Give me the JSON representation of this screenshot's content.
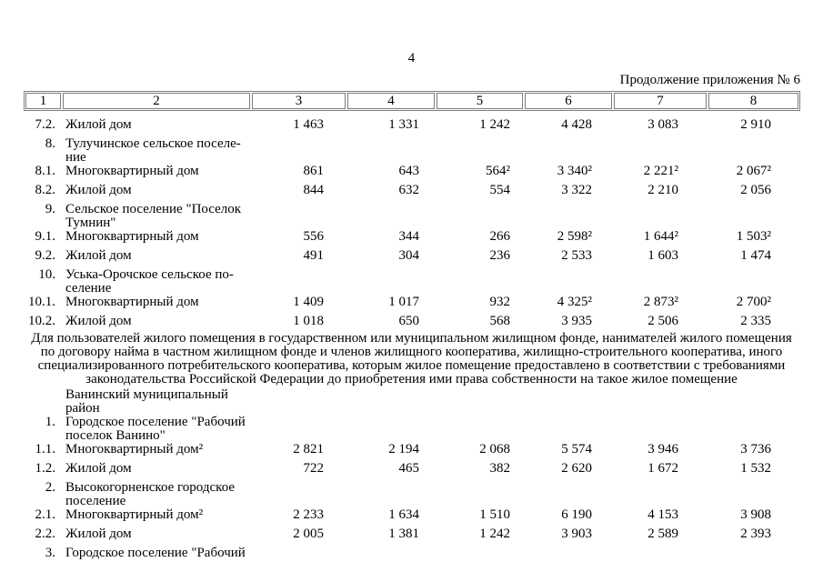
{
  "page": {
    "number": "4",
    "caption": "Продолжение приложения № 6"
  },
  "colors": {
    "text": "#000000",
    "background": "#ffffff",
    "table_border": "#7e7e7e"
  },
  "table": {
    "header": [
      "1",
      "2",
      "3",
      "4",
      "5",
      "6",
      "7",
      "8"
    ],
    "rows_top": [
      {
        "num": "7.2.",
        "name": "Жилой дом",
        "values": [
          "1 463",
          "1 331",
          "1 242",
          "4 428",
          "3 083",
          "2 910"
        ]
      },
      {
        "num": "8.",
        "name": [
          "Тулучинское сельское поселе-",
          "ние"
        ],
        "values": [
          "",
          "",
          "",
          "",
          "",
          ""
        ]
      },
      {
        "num": "8.1.",
        "name": "Многоквартирный дом",
        "values": [
          "861",
          "643",
          "564²",
          "3 340²",
          "2 221²",
          "2 067²"
        ]
      },
      {
        "num": "8.2.",
        "name": "Жилой дом",
        "values": [
          "844",
          "632",
          "554",
          "3 322",
          "2 210",
          "2 056"
        ]
      },
      {
        "num": "9.",
        "name": [
          "Сельское поселение \"Поселок",
          "Тумнин\""
        ],
        "values": [
          "",
          "",
          "",
          "",
          "",
          ""
        ]
      },
      {
        "num": "9.1.",
        "name": "Многоквартирный дом",
        "values": [
          "556",
          "344",
          "266",
          "2 598²",
          "1 644²",
          "1 503²"
        ]
      },
      {
        "num": "9.2.",
        "name": "Жилой дом",
        "values": [
          "491",
          "304",
          "236",
          "2 533",
          "1 603",
          "1 474"
        ]
      },
      {
        "num": "10.",
        "name": [
          "Уська-Орочское сельское по-",
          "селение"
        ],
        "values": [
          "",
          "",
          "",
          "",
          "",
          ""
        ]
      },
      {
        "num": "10.1.",
        "name": "Многоквартирный дом",
        "values": [
          "1 409",
          "1 017",
          "932",
          "4 325²",
          "2 873²",
          "2 700²"
        ]
      },
      {
        "num": "10.2.",
        "name": "Жилой дом",
        "values": [
          "1 018",
          "650",
          "568",
          "3 935",
          "2 506",
          "2 335"
        ]
      }
    ],
    "note_lines": [
      "Для пользователей жилого помещения в государственном или муниципальном жилищном фонде, нанимателей жилого помещения",
      "по договору найма в частном жилищном фонде и членов жилищного кооператива, жилищно-строительного кооператива, иного",
      "специализированного потребительского кооператива, которым жилое помещение предоставлено в соответствии с требованиями",
      "законодательства Российской Федерации до приобретения ими права собственности на такое жилое помещение"
    ],
    "rows_bottom": [
      {
        "num": "",
        "name": [
          "Ванинский муниципальный",
          "район"
        ],
        "values": [
          "",
          "",
          "",
          "",
          "",
          ""
        ]
      },
      {
        "num": "1.",
        "name": [
          "Городское поселение \"Рабочий",
          "поселок Ванино\""
        ],
        "values": [
          "",
          "",
          "",
          "",
          "",
          ""
        ]
      },
      {
        "num": "1.1.",
        "name": "Многоквартирный дом²",
        "values": [
          "2 821",
          "2 194",
          "2 068",
          "5 574",
          "3 946",
          "3 736"
        ]
      },
      {
        "num": "1.2.",
        "name": "Жилой дом",
        "values": [
          "722",
          "465",
          "382",
          "2 620",
          "1 672",
          "1 532"
        ]
      },
      {
        "num": "2.",
        "name": [
          "Высокогорненское городское",
          "поселение"
        ],
        "values": [
          "",
          "",
          "",
          "",
          "",
          ""
        ]
      },
      {
        "num": "2.1.",
        "name": "Многоквартирный дом²",
        "values": [
          "2 233",
          "1 634",
          "1 510",
          "6 190",
          "4 153",
          "3 908"
        ]
      },
      {
        "num": "2.2.",
        "name": "Жилой дом",
        "values": [
          "2 005",
          "1 381",
          "1 242",
          "3 903",
          "2 589",
          "2 393"
        ]
      },
      {
        "num": "3.",
        "name": "Городское поселение \"Рабочий",
        "values": [
          "",
          "",
          "",
          "",
          "",
          ""
        ]
      }
    ]
  }
}
